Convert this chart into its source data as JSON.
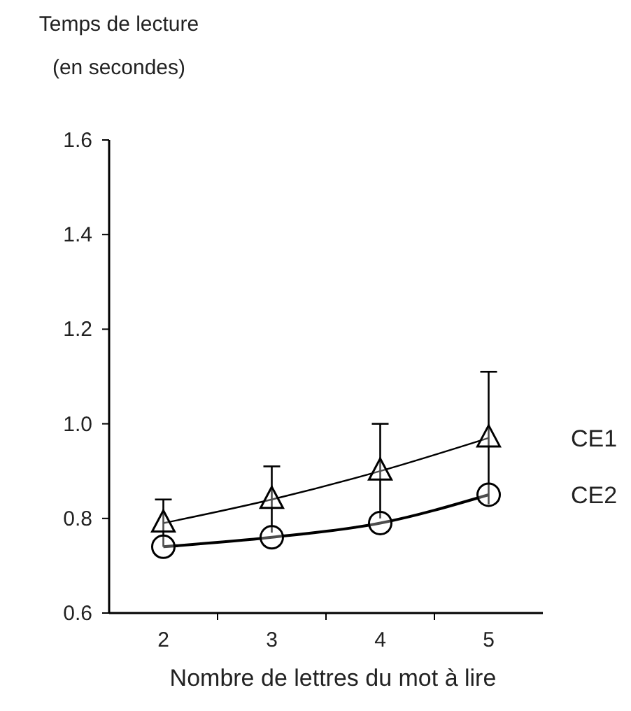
{
  "chart_data": {
    "type": "line",
    "title": "Temps de lecture",
    "subtitle": "(en secondes)",
    "xlabel": "Nombre de lettres du mot à lire",
    "categories": [
      "2",
      "3",
      "4",
      "5"
    ],
    "ylim": [
      0.6,
      1.6
    ],
    "yticks": [
      0.6,
      0.8,
      {
        "value": 1,
        "label": "1.0"
      },
      1.2,
      1.4,
      1.6
    ],
    "grid": false,
    "series": [
      {
        "name": "CE1",
        "color": "#000000",
        "marker": "triangle",
        "values": [
          0.79,
          0.84,
          0.9,
          0.97
        ],
        "errors": [
          0.05,
          0.07,
          0.1,
          0.14
        ]
      },
      {
        "name": "CE2",
        "color": "#000000",
        "marker": "circle",
        "values": [
          0.74,
          0.76,
          0.79,
          0.85
        ]
      }
    ]
  }
}
